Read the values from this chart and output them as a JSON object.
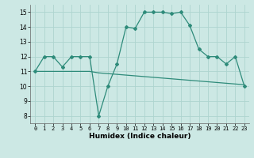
{
  "x": [
    0,
    1,
    2,
    3,
    4,
    5,
    6,
    7,
    8,
    9,
    10,
    11,
    12,
    13,
    14,
    15,
    16,
    17,
    18,
    19,
    20,
    21,
    22,
    23
  ],
  "y_main": [
    11,
    12,
    12,
    11.3,
    12,
    12,
    12,
    8,
    10,
    11.5,
    14,
    13.9,
    15,
    15,
    15,
    14.9,
    15,
    14.1,
    12.5,
    12,
    12,
    11.5,
    12,
    10
  ],
  "y_trend": [
    11.0,
    11.0,
    11.0,
    11.0,
    11.0,
    11.0,
    11.0,
    10.9,
    10.85,
    10.8,
    10.75,
    10.7,
    10.65,
    10.6,
    10.55,
    10.5,
    10.45,
    10.4,
    10.35,
    10.3,
    10.25,
    10.2,
    10.15,
    10.1
  ],
  "line_color": "#2e8b7a",
  "bg_color": "#cce8e4",
  "grid_color": "#aed4cf",
  "xlabel": "Humidex (Indice chaleur)",
  "ylim": [
    7.5,
    15.5
  ],
  "xlim": [
    -0.5,
    23.5
  ],
  "yticks": [
    8,
    9,
    10,
    11,
    12,
    13,
    14,
    15
  ],
  "xticks": [
    0,
    1,
    2,
    3,
    4,
    5,
    6,
    7,
    8,
    9,
    10,
    11,
    12,
    13,
    14,
    15,
    16,
    17,
    18,
    19,
    20,
    21,
    22,
    23
  ]
}
